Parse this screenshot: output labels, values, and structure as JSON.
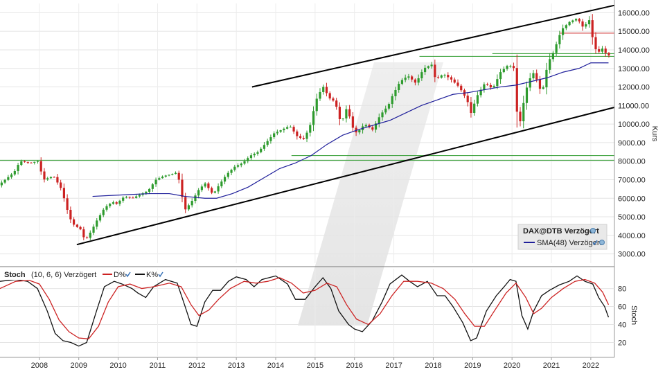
{
  "chart_data": [
    {
      "type": "candlestick",
      "title": "DAX@DTB Verzögert",
      "ylabel": "Kurs",
      "ylim": [
        2500,
        16500
      ],
      "y_ticks": [
        "3000.00",
        "4000.00",
        "5000.00",
        "6000.00",
        "7000.00",
        "8000.00",
        "9000.00",
        "10000.00",
        "11000.00",
        "12000.00",
        "13000.00",
        "14000.00",
        "15000.00",
        "16000.00"
      ],
      "x_ticks": [
        "2008",
        "2009",
        "2010",
        "2011",
        "2012",
        "2013",
        "2014",
        "2015",
        "2016",
        "2017",
        "2018",
        "2019",
        "2020",
        "2021",
        "2022"
      ],
      "xlim": [
        2007.0,
        2022.6
      ],
      "grid": true,
      "legend": {
        "placement": "bottom-right",
        "entries": [
          {
            "name": "DAX@DTB Verzögert",
            "color": "#3a3a3a"
          },
          {
            "name": "SMA(48) Verzögert",
            "color": "#1e1e9a"
          }
        ]
      },
      "colors": {
        "up": "#2e9b2e",
        "down": "#cc2222",
        "sma": "#1e1e9a",
        "trend": "#000000",
        "support": "#2e9b2e",
        "resistance": "#cc2222"
      },
      "price_path": [
        [
          2007.0,
          6700
        ],
        [
          2007.4,
          7400
        ],
        [
          2007.55,
          8000
        ],
        [
          2007.8,
          7900
        ],
        [
          2008.0,
          8000
        ],
        [
          2008.15,
          7000
        ],
        [
          2008.4,
          7200
        ],
        [
          2008.6,
          6500
        ],
        [
          2008.8,
          5000
        ],
        [
          2008.9,
          4600
        ],
        [
          2009.1,
          4300
        ],
        [
          2009.2,
          3700
        ],
        [
          2009.35,
          4200
        ],
        [
          2009.5,
          4800
        ],
        [
          2009.7,
          5500
        ],
        [
          2009.9,
          5800
        ],
        [
          2010.0,
          5700
        ],
        [
          2010.2,
          6100
        ],
        [
          2010.4,
          6000
        ],
        [
          2010.6,
          6200
        ],
        [
          2010.8,
          6400
        ],
        [
          2011.0,
          7000
        ],
        [
          2011.2,
          7200
        ],
        [
          2011.4,
          7300
        ],
        [
          2011.55,
          7400
        ],
        [
          2011.65,
          6200
        ],
        [
          2011.75,
          5400
        ],
        [
          2011.9,
          5800
        ],
        [
          2012.1,
          6500
        ],
        [
          2012.25,
          6800
        ],
        [
          2012.45,
          6200
        ],
        [
          2012.6,
          6700
        ],
        [
          2012.8,
          7300
        ],
        [
          2013.0,
          7700
        ],
        [
          2013.2,
          7900
        ],
        [
          2013.4,
          8300
        ],
        [
          2013.6,
          8500
        ],
        [
          2013.8,
          9000
        ],
        [
          2014.0,
          9500
        ],
        [
          2014.2,
          9700
        ],
        [
          2014.4,
          9900
        ],
        [
          2014.6,
          9300
        ],
        [
          2014.75,
          9200
        ],
        [
          2014.9,
          9800
        ],
        [
          2015.0,
          10700
        ],
        [
          2015.1,
          11500
        ],
        [
          2015.25,
          12000
        ],
        [
          2015.4,
          11400
        ],
        [
          2015.55,
          11200
        ],
        [
          2015.7,
          10000
        ],
        [
          2015.85,
          10900
        ],
        [
          2016.0,
          9800
        ],
        [
          2016.1,
          9500
        ],
        [
          2016.3,
          10000
        ],
        [
          2016.5,
          9700
        ],
        [
          2016.7,
          10500
        ],
        [
          2016.9,
          11000
        ],
        [
          2017.0,
          11500
        ],
        [
          2017.2,
          12300
        ],
        [
          2017.4,
          12600
        ],
        [
          2017.6,
          12200
        ],
        [
          2017.8,
          13000
        ],
        [
          2018.0,
          13200
        ],
        [
          2018.1,
          12400
        ],
        [
          2018.3,
          12700
        ],
        [
          2018.5,
          12400
        ],
        [
          2018.7,
          12000
        ],
        [
          2018.9,
          11300
        ],
        [
          2019.0,
          10600
        ],
        [
          2019.15,
          11500
        ],
        [
          2019.35,
          12200
        ],
        [
          2019.55,
          11900
        ],
        [
          2019.75,
          12800
        ],
        [
          2019.95,
          13200
        ],
        [
          2020.1,
          13000
        ],
        [
          2020.2,
          9500
        ],
        [
          2020.3,
          10800
        ],
        [
          2020.45,
          12300
        ],
        [
          2020.6,
          12800
        ],
        [
          2020.8,
          11600
        ],
        [
          2020.95,
          13300
        ],
        [
          2021.1,
          13900
        ],
        [
          2021.3,
          15100
        ],
        [
          2021.5,
          15500
        ],
        [
          2021.7,
          15700
        ],
        [
          2021.85,
          15200
        ],
        [
          2022.0,
          15600
        ],
        [
          2022.1,
          14500
        ],
        [
          2022.2,
          13800
        ],
        [
          2022.35,
          14100
        ],
        [
          2022.45,
          13700
        ]
      ],
      "sma_48": {
        "name": "SMA(48) Verzögert",
        "x": [
          2009.35,
          2009.8,
          2010.3,
          2010.8,
          2011.3,
          2011.7,
          2012.2,
          2012.5,
          2012.9,
          2013.3,
          2013.7,
          2014.1,
          2014.5,
          2014.9,
          2015.3,
          2015.7,
          2016.1,
          2016.5,
          2016.9,
          2017.3,
          2017.7,
          2018.1,
          2018.5,
          2018.9,
          2019.3,
          2019.7,
          2020.1,
          2020.5,
          2020.9,
          2021.3,
          2021.7,
          2022.0,
          2022.45
        ],
        "y": [
          6100,
          6150,
          6200,
          6250,
          6250,
          6100,
          6000,
          6000,
          6250,
          6600,
          7100,
          7600,
          7900,
          8300,
          8900,
          9400,
          9700,
          9950,
          10200,
          10600,
          11000,
          11300,
          11600,
          11700,
          11850,
          12000,
          12100,
          12300,
          12500,
          12800,
          13000,
          13300,
          13300
        ]
      },
      "trend_lines": [
        {
          "name": "upper",
          "x": [
            2013.4,
            2022.6
          ],
          "y": [
            12000,
            16400
          ]
        },
        {
          "name": "lower",
          "x": [
            2008.95,
            2022.6
          ],
          "y": [
            3500,
            10900
          ]
        }
      ],
      "horizontal_lines": [
        {
          "y": 8050,
          "x": [
            2007.0,
            2022.6
          ],
          "color": "#2e9b2e"
        },
        {
          "y": 8300,
          "x": [
            2014.4,
            2022.6
          ],
          "color": "#2e9b2e"
        },
        {
          "y": 13650,
          "x": [
            2017.65,
            2022.6
          ],
          "color": "#2e9b2e"
        },
        {
          "y": 13800,
          "x": [
            2019.5,
            2022.6
          ],
          "color": "#2e9b2e"
        },
        {
          "y": 14900,
          "x": [
            2021.2,
            2022.6
          ],
          "color": "#cc2222"
        }
      ]
    },
    {
      "type": "line",
      "title": "Stoch",
      "params": "(10, 6, 6) Verzögert",
      "ylabel": "Stoch",
      "ylim": [
        5,
        102
      ],
      "y_ticks": [
        "20",
        "40",
        "60",
        "80"
      ],
      "grid": true,
      "legend": {
        "placement": "top-left",
        "entries": [
          {
            "name": "D%",
            "color": "#cc2222"
          },
          {
            "name": "K%",
            "color": "#111111"
          }
        ]
      },
      "series": [
        {
          "name": "K%",
          "color": "#111111",
          "points": [
            [
              2007.0,
              88
            ],
            [
              2007.4,
              90
            ],
            [
              2007.7,
              88
            ],
            [
              2007.95,
              80
            ],
            [
              2008.2,
              55
            ],
            [
              2008.4,
              30
            ],
            [
              2008.6,
              22
            ],
            [
              2008.8,
              20
            ],
            [
              2009.0,
              16
            ],
            [
              2009.2,
              20
            ],
            [
              2009.45,
              55
            ],
            [
              2009.65,
              82
            ],
            [
              2009.9,
              88
            ],
            [
              2010.1,
              85
            ],
            [
              2010.35,
              80
            ],
            [
              2010.5,
              75
            ],
            [
              2010.7,
              70
            ],
            [
              2010.9,
              82
            ],
            [
              2011.2,
              90
            ],
            [
              2011.5,
              86
            ],
            [
              2011.7,
              60
            ],
            [
              2011.85,
              40
            ],
            [
              2012.0,
              38
            ],
            [
              2012.2,
              65
            ],
            [
              2012.4,
              78
            ],
            [
              2012.6,
              78
            ],
            [
              2012.8,
              88
            ],
            [
              2013.0,
              93
            ],
            [
              2013.25,
              90
            ],
            [
              2013.45,
              82
            ],
            [
              2013.65,
              90
            ],
            [
              2014.0,
              94
            ],
            [
              2014.3,
              85
            ],
            [
              2014.5,
              68
            ],
            [
              2014.75,
              68
            ],
            [
              2015.0,
              82
            ],
            [
              2015.2,
              92
            ],
            [
              2015.4,
              80
            ],
            [
              2015.6,
              55
            ],
            [
              2015.85,
              40
            ],
            [
              2016.0,
              35
            ],
            [
              2016.2,
              32
            ],
            [
              2016.45,
              44
            ],
            [
              2016.7,
              65
            ],
            [
              2016.9,
              85
            ],
            [
              2017.2,
              95
            ],
            [
              2017.4,
              88
            ],
            [
              2017.6,
              82
            ],
            [
              2017.85,
              88
            ],
            [
              2018.1,
              72
            ],
            [
              2018.3,
              72
            ],
            [
              2018.5,
              60
            ],
            [
              2018.75,
              42
            ],
            [
              2018.95,
              22
            ],
            [
              2019.1,
              25
            ],
            [
              2019.35,
              55
            ],
            [
              2019.6,
              72
            ],
            [
              2019.8,
              82
            ],
            [
              2019.95,
              90
            ],
            [
              2020.1,
              88
            ],
            [
              2020.25,
              50
            ],
            [
              2020.4,
              35
            ],
            [
              2020.55,
              55
            ],
            [
              2020.75,
              72
            ],
            [
              2020.95,
              78
            ],
            [
              2021.2,
              84
            ],
            [
              2021.45,
              88
            ],
            [
              2021.65,
              94
            ],
            [
              2021.85,
              88
            ],
            [
              2022.05,
              85
            ],
            [
              2022.2,
              70
            ],
            [
              2022.35,
              60
            ],
            [
              2022.45,
              48
            ]
          ]
        },
        {
          "name": "D%",
          "color": "#cc2222",
          "points": [
            [
              2007.0,
              80
            ],
            [
              2007.4,
              88
            ],
            [
              2007.75,
              89
            ],
            [
              2008.0,
              85
            ],
            [
              2008.25,
              68
            ],
            [
              2008.5,
              45
            ],
            [
              2008.75,
              32
            ],
            [
              2009.0,
              25
            ],
            [
              2009.25,
              24
            ],
            [
              2009.5,
              38
            ],
            [
              2009.75,
              65
            ],
            [
              2010.0,
              82
            ],
            [
              2010.3,
              85
            ],
            [
              2010.6,
              80
            ],
            [
              2010.9,
              82
            ],
            [
              2011.3,
              86
            ],
            [
              2011.6,
              82
            ],
            [
              2011.85,
              62
            ],
            [
              2012.05,
              50
            ],
            [
              2012.3,
              56
            ],
            [
              2012.55,
              68
            ],
            [
              2012.85,
              80
            ],
            [
              2013.2,
              88
            ],
            [
              2013.5,
              86
            ],
            [
              2013.8,
              88
            ],
            [
              2014.1,
              92
            ],
            [
              2014.4,
              86
            ],
            [
              2014.7,
              75
            ],
            [
              2015.0,
              78
            ],
            [
              2015.3,
              86
            ],
            [
              2015.55,
              82
            ],
            [
              2015.8,
              62
            ],
            [
              2016.05,
              46
            ],
            [
              2016.35,
              40
            ],
            [
              2016.65,
              52
            ],
            [
              2016.95,
              72
            ],
            [
              2017.25,
              88
            ],
            [
              2017.6,
              88
            ],
            [
              2017.95,
              86
            ],
            [
              2018.25,
              80
            ],
            [
              2018.55,
              68
            ],
            [
              2018.8,
              52
            ],
            [
              2019.05,
              38
            ],
            [
              2019.3,
              38
            ],
            [
              2019.55,
              55
            ],
            [
              2019.85,
              75
            ],
            [
              2020.1,
              86
            ],
            [
              2020.35,
              70
            ],
            [
              2020.55,
              52
            ],
            [
              2020.75,
              58
            ],
            [
              2021.0,
              70
            ],
            [
              2021.3,
              80
            ],
            [
              2021.6,
              88
            ],
            [
              2021.85,
              90
            ],
            [
              2022.1,
              86
            ],
            [
              2022.3,
              76
            ],
            [
              2022.45,
              62
            ]
          ]
        }
      ]
    }
  ]
}
